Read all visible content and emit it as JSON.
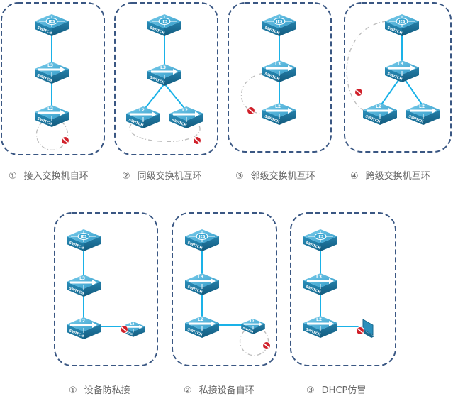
{
  "colors": {
    "panel_border": "#3a5783",
    "link": "#1ab2e8",
    "loop": "#bbbbbb",
    "switch_top": "#4fb3d8",
    "switch_side": "#1d7fa8",
    "block": "#d0202a",
    "caption": "#666666"
  },
  "switch_labels": {
    "core": "IES",
    "l3": "L3",
    "l2": "L2",
    "body": "SWITCH"
  },
  "row1": [
    {
      "num": "①",
      "label": "接入交换机自环"
    },
    {
      "num": "②",
      "label": "同级交换机互环"
    },
    {
      "num": "③",
      "label": "邻级交换机互环"
    },
    {
      "num": "④",
      "label": "跨级交换机互环"
    }
  ],
  "row2": [
    {
      "num": "①",
      "label": "设备防私接"
    },
    {
      "num": "②",
      "label": "私接设备自环"
    },
    {
      "num": "③",
      "label": "DHCP仿冒"
    }
  ]
}
